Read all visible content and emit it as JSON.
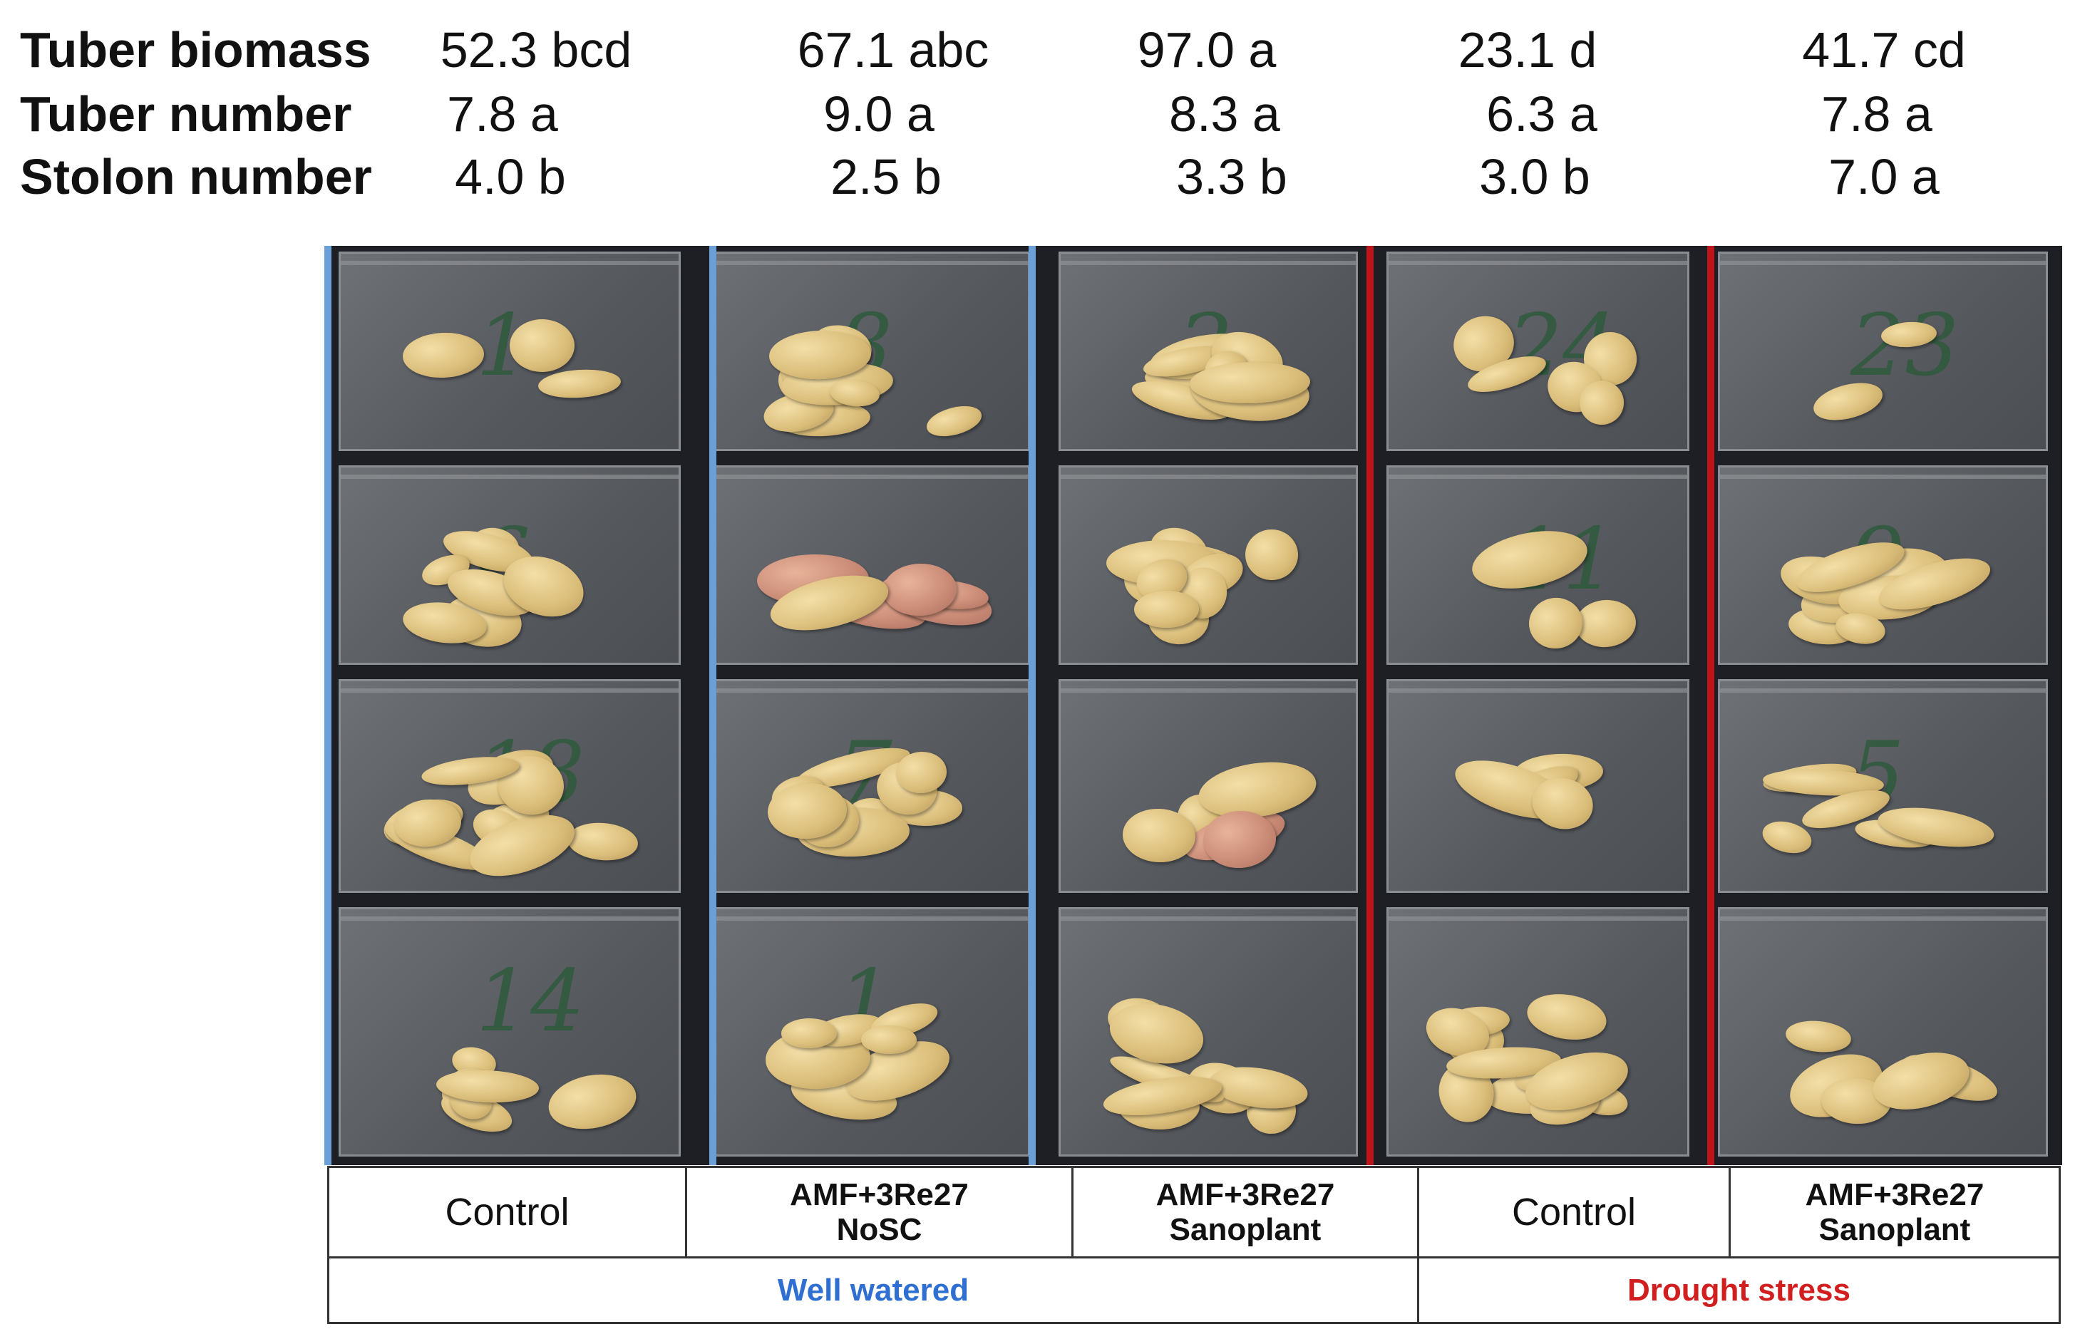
{
  "stats": {
    "rows": [
      {
        "label": "Tuber biomass",
        "values": [
          "52.3 bcd",
          "67.1 abc",
          "97.0 a",
          "23.1 d",
          "41.7 cd"
        ]
      },
      {
        "label": "Tuber number",
        "values": [
          "7.8 a",
          "9.0 a",
          "8.3 a",
          "6.3 a",
          "7.8 a"
        ]
      },
      {
        "label": "Stolon number",
        "values": [
          "4.0 b",
          "2.5 b",
          "3.3 b",
          "3.0 b",
          "7.0 a"
        ]
      }
    ]
  },
  "photo": {
    "bag_numbers": [
      [
        "1",
        "8",
        "2",
        "24",
        "23"
      ],
      [
        "6",
        "",
        "",
        "11",
        "9"
      ],
      [
        "18",
        "7",
        "",
        "",
        "5"
      ],
      [
        "14",
        "1",
        "",
        "",
        ""
      ]
    ]
  },
  "treatments": [
    {
      "label": "Control"
    },
    {
      "label": "AMF+3Re27\nNoSC"
    },
    {
      "label": "AMF+3Re27\nSanoplant"
    },
    {
      "label": "Control"
    },
    {
      "label": "AMF+3Re27\nSanoplant"
    }
  ],
  "conditions": [
    {
      "label": "Well watered",
      "color": "#2f6fd1"
    },
    {
      "label": "Drought stress",
      "color": "#d11f1f"
    }
  ],
  "colors": {
    "well_line": "#6a9fd8",
    "drought_line": "#c0141c"
  }
}
